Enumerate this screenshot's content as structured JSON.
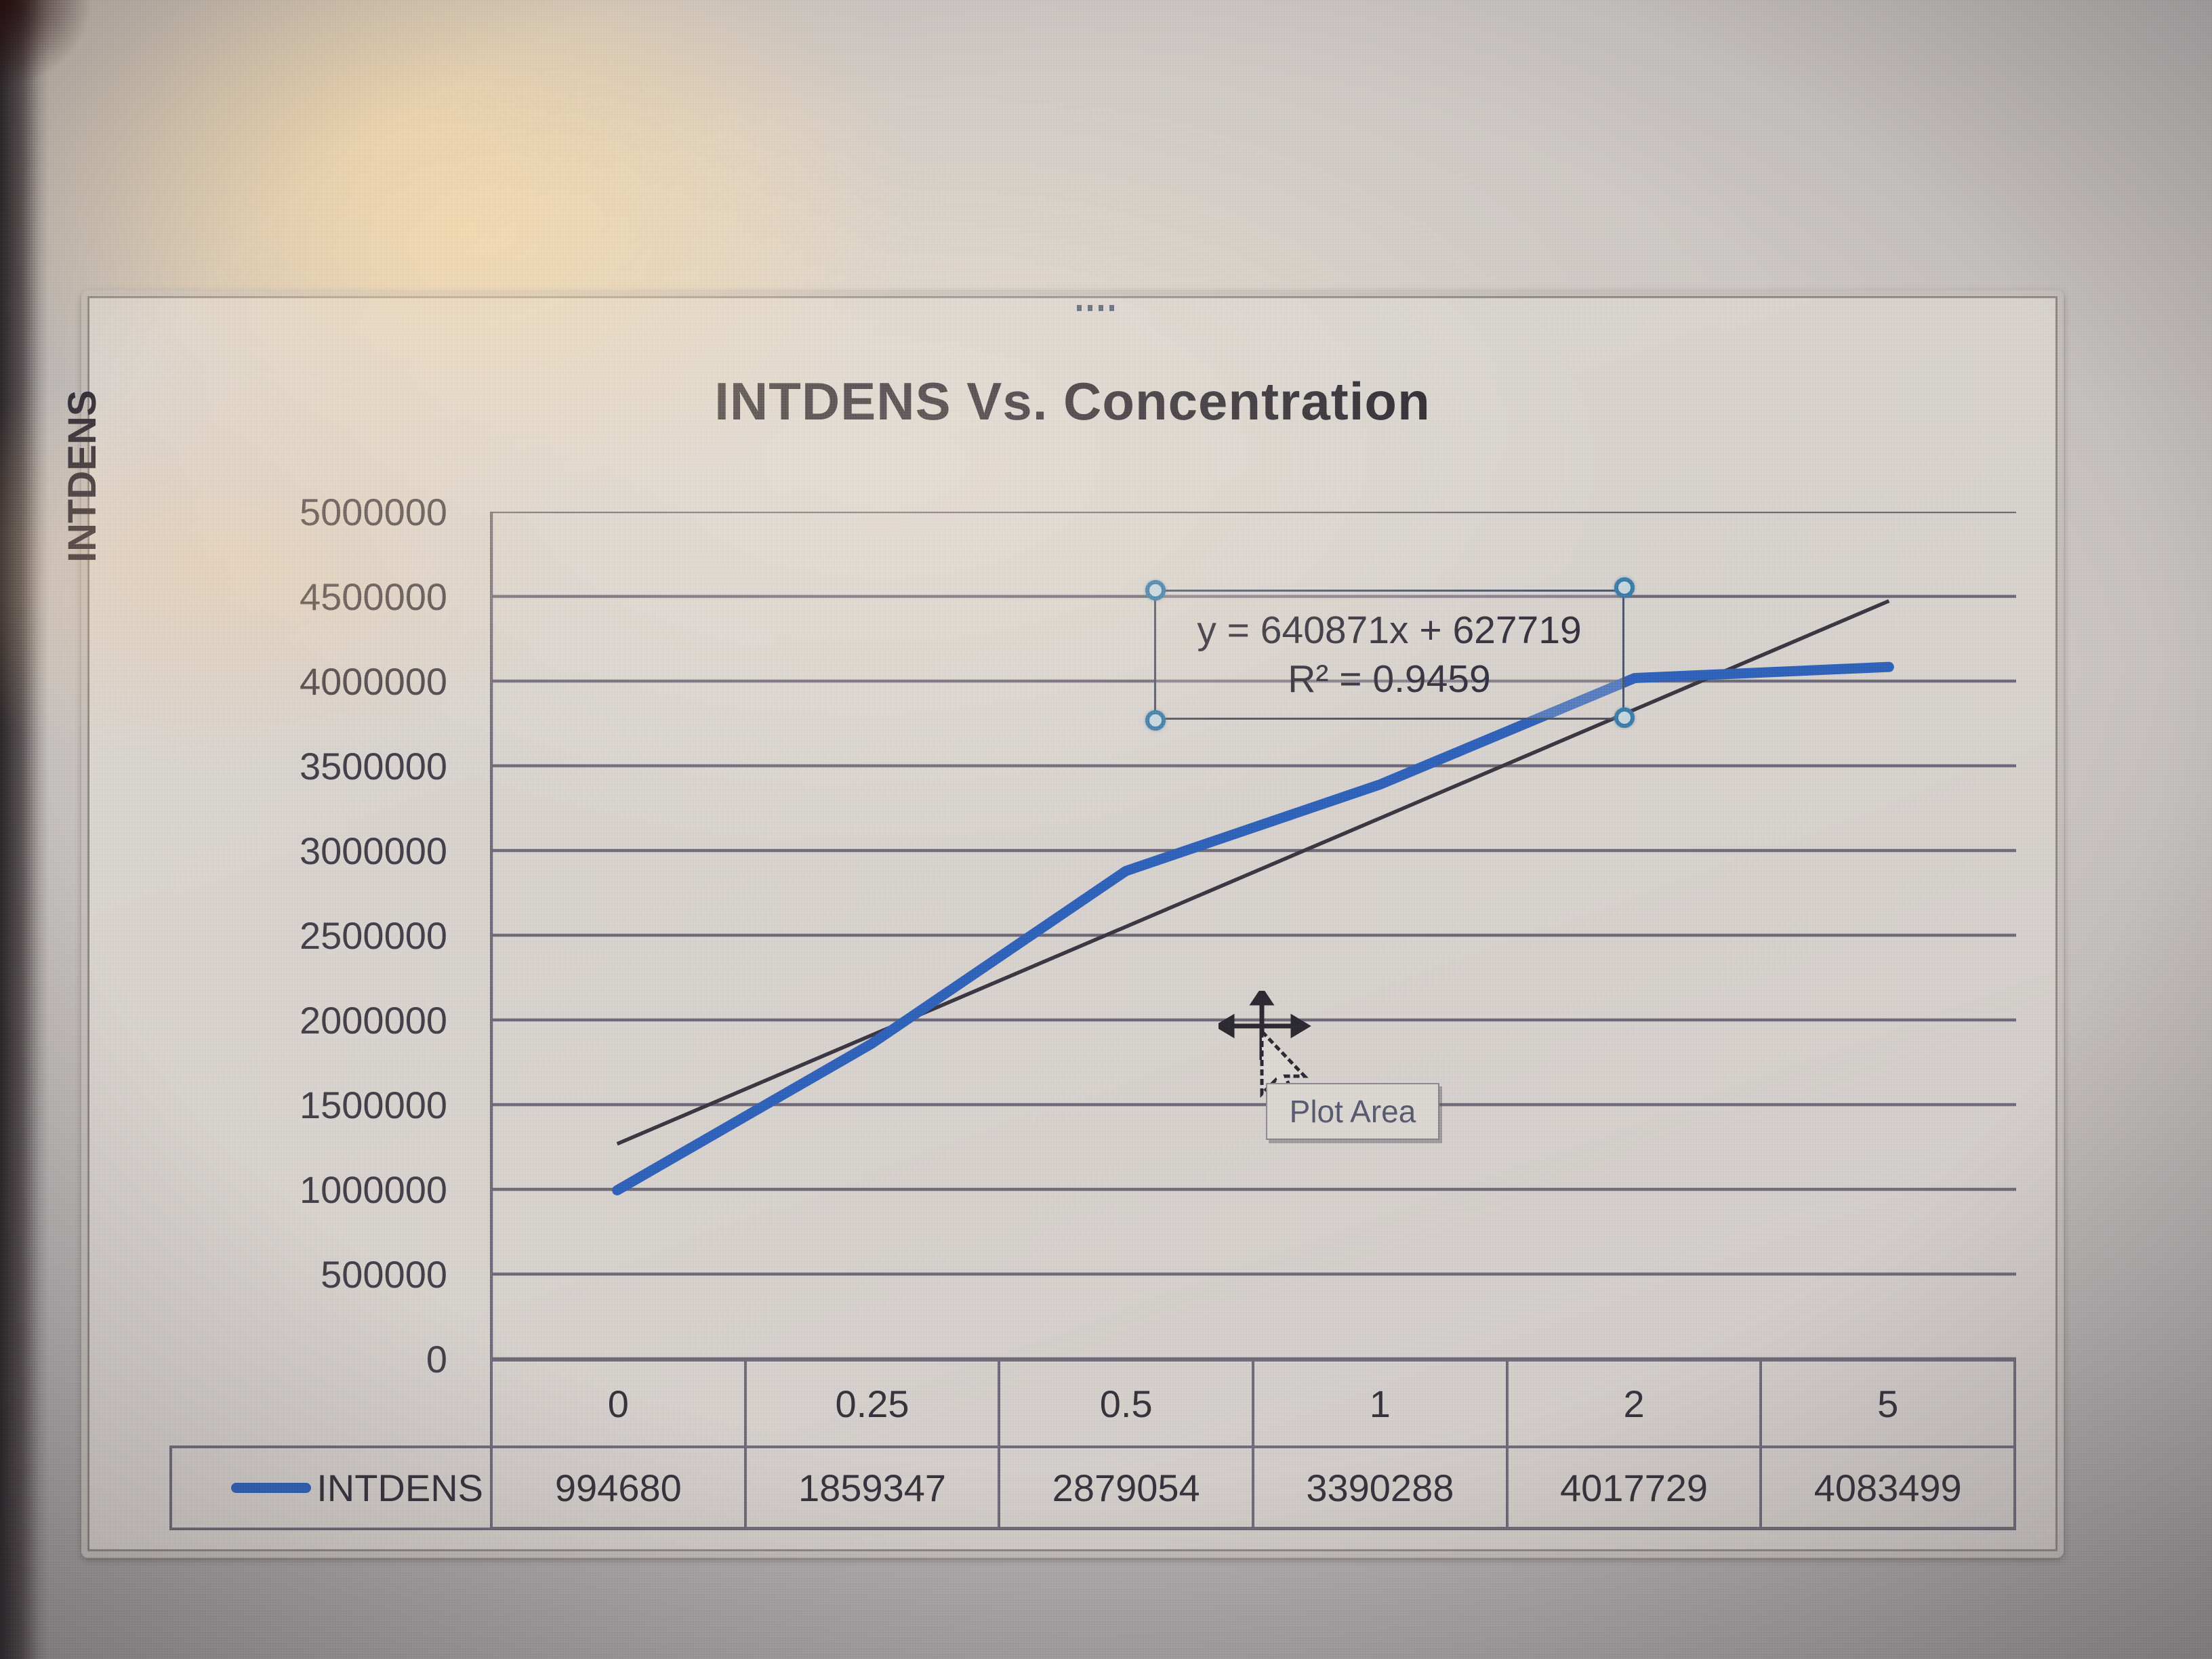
{
  "chart_data": {
    "type": "line",
    "title": "INTDENS Vs. Concentration",
    "ylabel": "INTDENS",
    "xlabel": "",
    "categories": [
      "0",
      "0.25",
      "0.5",
      "1",
      "2",
      "5"
    ],
    "series": [
      {
        "name": "INTDENS",
        "values": [
          994680,
          1859347,
          2879054,
          3390288,
          4017729,
          4083499
        ],
        "color": "#2f62b8"
      }
    ],
    "trendline": {
      "label_line1": "y = 640871x + 627719",
      "label_line2": "R² = 0.9459",
      "slope": 640871,
      "intercept": 627719,
      "r2": 0.9459,
      "color": "#3a3742"
    },
    "ylim": [
      0,
      5000000
    ],
    "ytick_step": 500000,
    "yticks": [
      "5000000",
      "4500000",
      "4000000",
      "3500000",
      "3000000",
      "2500000",
      "2000000",
      "1500000",
      "1000000",
      "500000",
      "0"
    ],
    "grid": true,
    "legend_position": "left-of-data-table",
    "data_table_shown": true
  },
  "tooltip": {
    "text": "Plot Area"
  },
  "cursor": {
    "type": "move-arrow-cursor"
  },
  "colors": {
    "grid": "#6e6a78",
    "axis": "#6e6a78",
    "text": "#36333d",
    "series": "#2f62b8",
    "trend": "#3a3742",
    "handle_ring": "#3e7ca8",
    "frame": "#c3bdb9"
  }
}
